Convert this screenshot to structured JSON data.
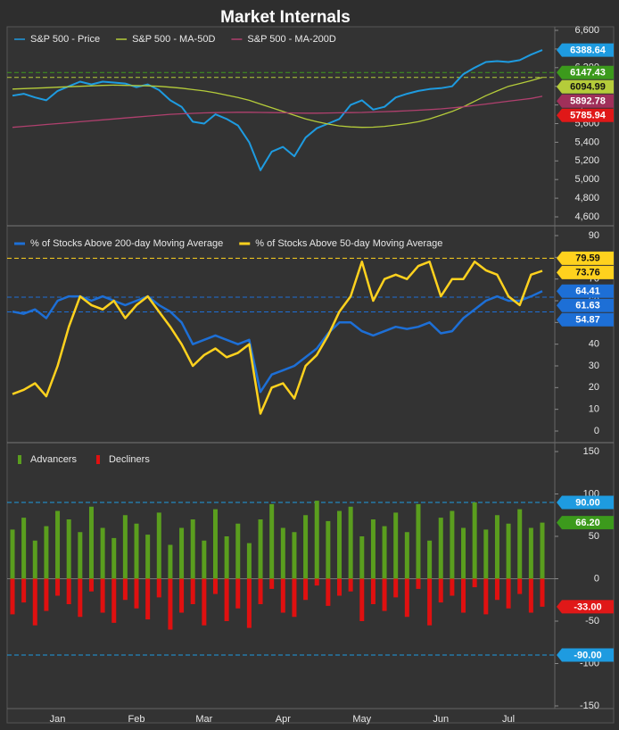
{
  "chart_data": [
    {
      "type": "line",
      "title": "Market Internals",
      "ylim": [
        4600,
        6600
      ],
      "yticks": [
        {
          "value": 4600,
          "label": "4,600"
        },
        {
          "value": 4800,
          "label": "4,800"
        },
        {
          "value": 5000,
          "label": "5,000"
        },
        {
          "value": 5200,
          "label": "5,200"
        },
        {
          "value": 5400,
          "label": "5,400"
        },
        {
          "value": 5600,
          "label": "5,600"
        },
        {
          "value": 5800,
          "label": "5,800"
        },
        {
          "value": 6000,
          "label": "6,000"
        },
        {
          "value": 6200,
          "label": "6,200"
        },
        {
          "value": 6400,
          "label": "6,400"
        },
        {
          "value": 6600,
          "label": "6,600"
        }
      ],
      "series": [
        {
          "name": "S&P 500 - Price",
          "color": "#1e9be0",
          "values": [
            5900,
            5920,
            5880,
            5850,
            5950,
            6000,
            6050,
            6020,
            6050,
            6040,
            6030,
            5990,
            6020,
            5960,
            5850,
            5780,
            5620,
            5600,
            5700,
            5650,
            5580,
            5400,
            5100,
            5300,
            5350,
            5250,
            5450,
            5550,
            5600,
            5650,
            5800,
            5850,
            5750,
            5780,
            5880,
            5920,
            5950,
            5970,
            5980,
            6000,
            6130,
            6200,
            6260,
            6270,
            6260,
            6280,
            6340,
            6388.64
          ]
        },
        {
          "name": "S&P 500 - MA-50D",
          "color": "#b5cc3a",
          "values": [
            5970,
            5975,
            5980,
            5985,
            5990,
            5995,
            6000,
            6005,
            6010,
            6012,
            6010,
            6008,
            6005,
            6000,
            5990,
            5980,
            5965,
            5950,
            5930,
            5905,
            5880,
            5850,
            5810,
            5770,
            5730,
            5690,
            5650,
            5620,
            5595,
            5575,
            5565,
            5560,
            5562,
            5570,
            5585,
            5600,
            5620,
            5650,
            5690,
            5730,
            5780,
            5840,
            5900,
            5950,
            6000,
            6030,
            6060,
            6094.99
          ]
        },
        {
          "name": "S&P 500 - MA-200D",
          "color": "#b0406e",
          "values": [
            5560,
            5570,
            5580,
            5590,
            5600,
            5610,
            5620,
            5630,
            5640,
            5650,
            5660,
            5670,
            5680,
            5690,
            5700,
            5705,
            5710,
            5715,
            5718,
            5720,
            5722,
            5722,
            5720,
            5718,
            5716,
            5714,
            5712,
            5712,
            5714,
            5716,
            5718,
            5720,
            5724,
            5728,
            5732,
            5738,
            5744,
            5750,
            5758,
            5768,
            5780,
            5795,
            5810,
            5825,
            5840,
            5855,
            5870,
            5892.78
          ]
        }
      ],
      "tags": [
        {
          "value": 6388.64,
          "label": "6388.64",
          "color": "#1e9be0",
          "text_color": "#ffffff",
          "dashed": false
        },
        {
          "value": 6147.43,
          "label": "6147.43",
          "color": "#3c9a1c",
          "text_color": "#ffffff",
          "dashed": true
        },
        {
          "value": 6094.99,
          "label": "6094.99",
          "color": "#b5cc3a",
          "text_color": "#111111",
          "dashed": true
        },
        {
          "value": 5892.78,
          "label": "5892.78",
          "color": "#a0305a",
          "text_color": "#ffffff",
          "dashed": false
        },
        {
          "value": 5785.94,
          "label": "5785.94",
          "color": "#e01818",
          "text_color": "#ffffff",
          "dashed": false
        }
      ]
    },
    {
      "type": "line",
      "ylim": [
        0,
        90
      ],
      "yticks": [
        0,
        10,
        20,
        30,
        40,
        50,
        60,
        70,
        80,
        90
      ],
      "series": [
        {
          "name": "% of Stocks Above 200-day Moving Average",
          "color": "#1d6fd6",
          "values": [
            55,
            54,
            56,
            52,
            60,
            62,
            62,
            60,
            62,
            60,
            58,
            60,
            62,
            58,
            55,
            50,
            40,
            42,
            44,
            42,
            40,
            42,
            18,
            26,
            28,
            30,
            34,
            38,
            45,
            50,
            50,
            46,
            44,
            46,
            48,
            47,
            48,
            50,
            45,
            46,
            52,
            56,
            60,
            62,
            60,
            60,
            62,
            64.41
          ]
        },
        {
          "name": "% of Stocks Above 50-day Moving Average",
          "color": "#ffd21e",
          "values": [
            17,
            19,
            22,
            16,
            30,
            48,
            62,
            58,
            56,
            60,
            52,
            58,
            62,
            55,
            48,
            40,
            30,
            35,
            38,
            34,
            36,
            40,
            8,
            20,
            22,
            15,
            30,
            35,
            44,
            55,
            62,
            78,
            60,
            70,
            72,
            70,
            76,
            78,
            62,
            70,
            70,
            78,
            74,
            72,
            62,
            58,
            72,
            73.76
          ]
        }
      ],
      "tags": [
        {
          "value": 79.59,
          "label": "79.59",
          "color": "#ffd21e",
          "text_color": "#111111",
          "dashed": true
        },
        {
          "value": 73.76,
          "label": "73.76",
          "color": "#ffd21e",
          "text_color": "#111111",
          "dashed": false
        },
        {
          "value": 64.41,
          "label": "64.41",
          "color": "#1d6fd6",
          "text_color": "#ffffff",
          "dashed": false
        },
        {
          "value": 61.63,
          "label": "61.63",
          "color": "#1d6fd6",
          "text_color": "#ffffff",
          "dashed": true
        },
        {
          "value": 54.87,
          "label": "54.87",
          "color": "#1d6fd6",
          "text_color": "#ffffff",
          "dashed": true
        }
      ]
    },
    {
      "type": "bar",
      "categories": [
        null,
        null,
        null,
        null,
        "Jan",
        null,
        null,
        null,
        null,
        null,
        null,
        "Feb",
        null,
        null,
        null,
        null,
        null,
        "Mar",
        null,
        null,
        null,
        null,
        null,
        null,
        "Apr",
        null,
        null,
        null,
        null,
        null,
        null,
        "May",
        null,
        null,
        null,
        null,
        null,
        null,
        "Jun",
        null,
        null,
        null,
        null,
        null,
        "Jul",
        null,
        null,
        null
      ],
      "ylim": [
        -150,
        150
      ],
      "yticks": [
        -150,
        -100,
        -50,
        0,
        50,
        100,
        150
      ],
      "series": [
        {
          "name": "Advancers",
          "color": "#5a9e1e",
          "values": [
            58,
            72,
            45,
            62,
            80,
            70,
            55,
            85,
            60,
            48,
            75,
            65,
            52,
            78,
            40,
            60,
            70,
            45,
            82,
            50,
            65,
            42,
            70,
            88,
            60,
            55,
            75,
            92,
            68,
            80,
            85,
            50,
            70,
            62,
            78,
            55,
            88,
            45,
            72,
            80,
            60,
            90,
            58,
            75,
            65,
            82,
            60,
            66.2
          ]
        },
        {
          "name": "Decliners",
          "color": "#e01010",
          "values": [
            -42,
            -28,
            -55,
            -38,
            -20,
            -30,
            -45,
            -15,
            -40,
            -52,
            -25,
            -35,
            -48,
            -22,
            -60,
            -40,
            -30,
            -55,
            -18,
            -50,
            -35,
            -58,
            -30,
            -12,
            -40,
            -45,
            -25,
            -8,
            -32,
            -20,
            -15,
            -50,
            -30,
            -38,
            -22,
            -45,
            -12,
            -55,
            -28,
            -20,
            -40,
            -10,
            -42,
            -25,
            -35,
            -18,
            -40,
            -33
          ]
        }
      ],
      "tags": [
        {
          "value": 90,
          "label": "90.00",
          "color": "#1e9be0",
          "text_color": "#ffffff",
          "dashed": true
        },
        {
          "value": 66.2,
          "label": "66.20",
          "color": "#3c9a1c",
          "text_color": "#ffffff",
          "dashed": false
        },
        {
          "value": -33,
          "label": "-33.00",
          "color": "#e01818",
          "text_color": "#ffffff",
          "dashed": false
        },
        {
          "value": -90,
          "label": "-90.00",
          "color": "#1e9be0",
          "text_color": "#ffffff",
          "dashed": true
        }
      ]
    }
  ]
}
